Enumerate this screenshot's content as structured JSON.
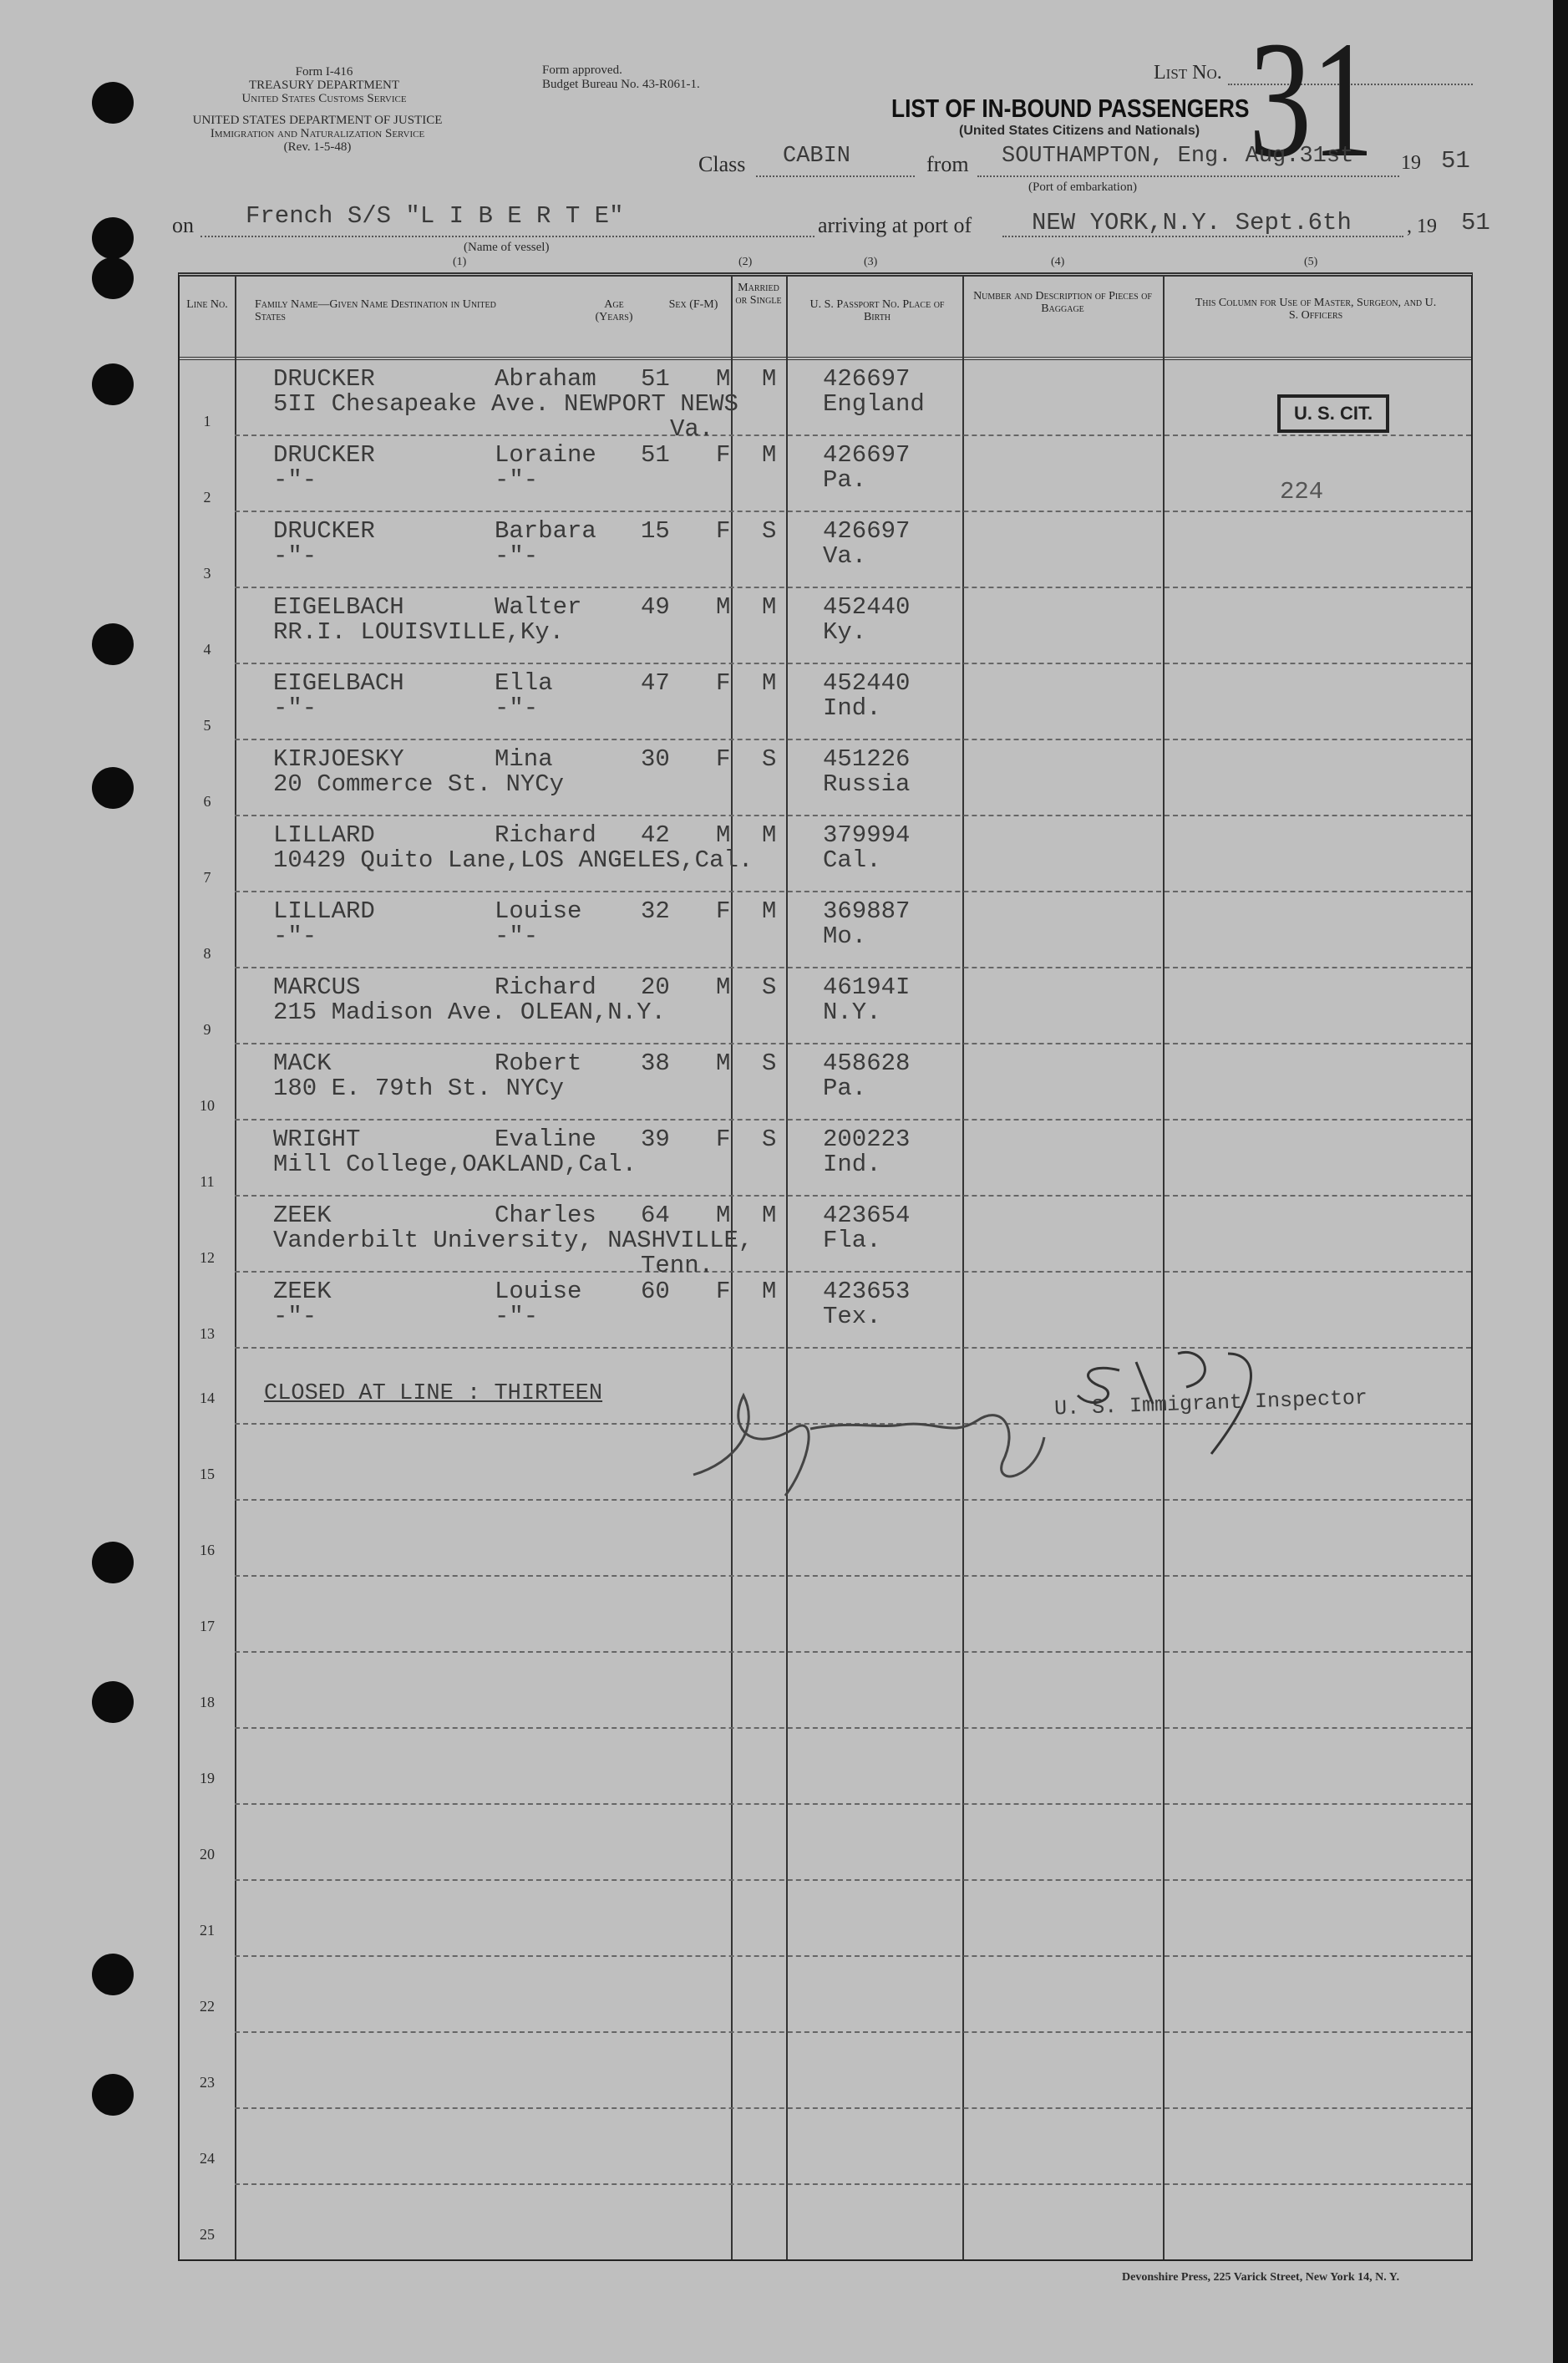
{
  "header": {
    "form_number": "Form I-416",
    "dept1": "TREASURY DEPARTMENT",
    "dept1_sub": "United States Customs Service",
    "dept2": "UNITED STATES DEPARTMENT OF JUSTICE",
    "dept2_sub": "Immigration and Naturalization Service",
    "revision": "(Rev. 1-5-48)",
    "approval": "Form approved.",
    "budget": "Budget Bureau No. 43-R061-1.",
    "list_no_label": "List No.",
    "list_no_value": "31",
    "title": "LIST OF IN-BOUND PASSENGERS",
    "subtitle": "(United States Citizens and Nationals)",
    "class_label": "Class",
    "class_value": "CABIN",
    "from_label": "from",
    "from_value": "SOUTHAMPTON, Eng. Aug.31st",
    "from_year_label": "19",
    "from_year": "51",
    "port_caption": "(Port of embarkation)",
    "on_label": "on",
    "vessel": "French S/S \"L I B E R T E\"",
    "vessel_caption": "(Name of vessel)",
    "arriving_label": "arriving at port of",
    "arrival_value": "NEW YORK,N.Y. Sept.6th",
    "arrival_year_label": ", 19",
    "arrival_year": "51"
  },
  "columns": {
    "numbers": [
      "(1)",
      "(2)",
      "(3)",
      "(4)",
      "(5)"
    ],
    "line_no": "Line No.",
    "name": "Family Name—Given Name Destination in United States",
    "age": "Age (Years)",
    "sex": "Sex (F-M)",
    "married": "Married or Single",
    "passport": "U. S. Passport No. Place of Birth",
    "baggage": "Number and Description of Pieces of Baggage",
    "officers": "This Column for Use of Master, Surgeon, and U. S. Officers"
  },
  "passengers": [
    {
      "line": "1",
      "surname": "DRUCKER",
      "given": "Abraham",
      "age": "51",
      "sex": "M",
      "marital": "M",
      "passport": "426697",
      "birthplace": "England",
      "dest": "5II Chesapeake Ave. NEWPORT NEWS",
      "dest2": "Va."
    },
    {
      "line": "2",
      "surname": "DRUCKER",
      "given": "Loraine",
      "age": "51",
      "sex": "F",
      "marital": "M",
      "passport": "426697",
      "birthplace": "Pa.",
      "dest": "-\"-",
      "given2": "-\"-"
    },
    {
      "line": "3",
      "surname": "DRUCKER",
      "given": "Barbara",
      "age": "15",
      "sex": "F",
      "marital": "S",
      "passport": "426697",
      "birthplace": "Va.",
      "dest": "-\"-",
      "given2": "-\"-"
    },
    {
      "line": "4",
      "surname": "EIGELBACH",
      "given": "Walter",
      "age": "49",
      "sex": "M",
      "marital": "M",
      "passport": "452440",
      "birthplace": "Ky.",
      "dest": "RR.I. LOUISVILLE,Ky."
    },
    {
      "line": "5",
      "surname": "EIGELBACH",
      "given": "Ella",
      "age": "47",
      "sex": "F",
      "marital": "M",
      "passport": "452440",
      "birthplace": "Ind.",
      "dest": "-\"-",
      "given2": "-\"-"
    },
    {
      "line": "6",
      "surname": "KIRJOESKY",
      "given": "Mina",
      "age": "30",
      "sex": "F",
      "marital": "S",
      "passport": "451226",
      "birthplace": "Russia",
      "dest": "20 Commerce St. NYCy"
    },
    {
      "line": "7",
      "surname": "LILLARD",
      "given": "Richard",
      "age": "42",
      "sex": "M",
      "marital": "M",
      "passport": "379994",
      "birthplace": "Cal.",
      "dest": "10429 Quito Lane,LOS ANGELES,Cal."
    },
    {
      "line": "8",
      "surname": "LILLARD",
      "given": "Louise",
      "age": "32",
      "sex": "F",
      "marital": "M",
      "passport": "369887",
      "birthplace": "Mo.",
      "dest": "-\"-",
      "given2": "-\"-"
    },
    {
      "line": "9",
      "surname": "MARCUS",
      "given": "Richard",
      "age": "20",
      "sex": "M",
      "marital": "S",
      "passport": "46194I",
      "birthplace": "N.Y.",
      "dest": "215 Madison Ave. OLEAN,N.Y."
    },
    {
      "line": "10",
      "surname": "MACK",
      "given": "Robert",
      "age": "38",
      "sex": "M",
      "marital": "S",
      "passport": "458628",
      "birthplace": "Pa.",
      "dest": "180 E. 79th St. NYCy"
    },
    {
      "line": "11",
      "surname": "WRIGHT",
      "given": "Evaline",
      "age": "39",
      "sex": "F",
      "marital": "S",
      "passport": "200223",
      "birthplace": "Ind.",
      "dest": "Mill College,OAKLAND,Cal."
    },
    {
      "line": "12",
      "surname": "ZEEK",
      "given": "Charles",
      "age": "64",
      "sex": "M",
      "marital": "M",
      "passport": "423654",
      "birthplace": "Fla.",
      "dest": "Vanderbilt University, NASHVILLE,",
      "dest2": "Tenn."
    },
    {
      "line": "13",
      "surname": "ZEEK",
      "given": "Louise",
      "age": "60",
      "sex": "F",
      "marital": "M",
      "passport": "423653",
      "birthplace": "Tex.",
      "dest": "-\"-",
      "given2": "-\"-"
    }
  ],
  "empty_lines": [
    "14",
    "15",
    "16",
    "17",
    "18",
    "19",
    "20",
    "21",
    "22",
    "23",
    "24",
    "25"
  ],
  "stamp": "U. S. CIT.",
  "officer_note": "224",
  "closed_text": "CLOSED AT LINE : THIRTEEN",
  "inspector_label": "U. S. Immigrant Inspector",
  "printer": "Devonshire Press, 225 Varick Street, New York 14, N. Y."
}
